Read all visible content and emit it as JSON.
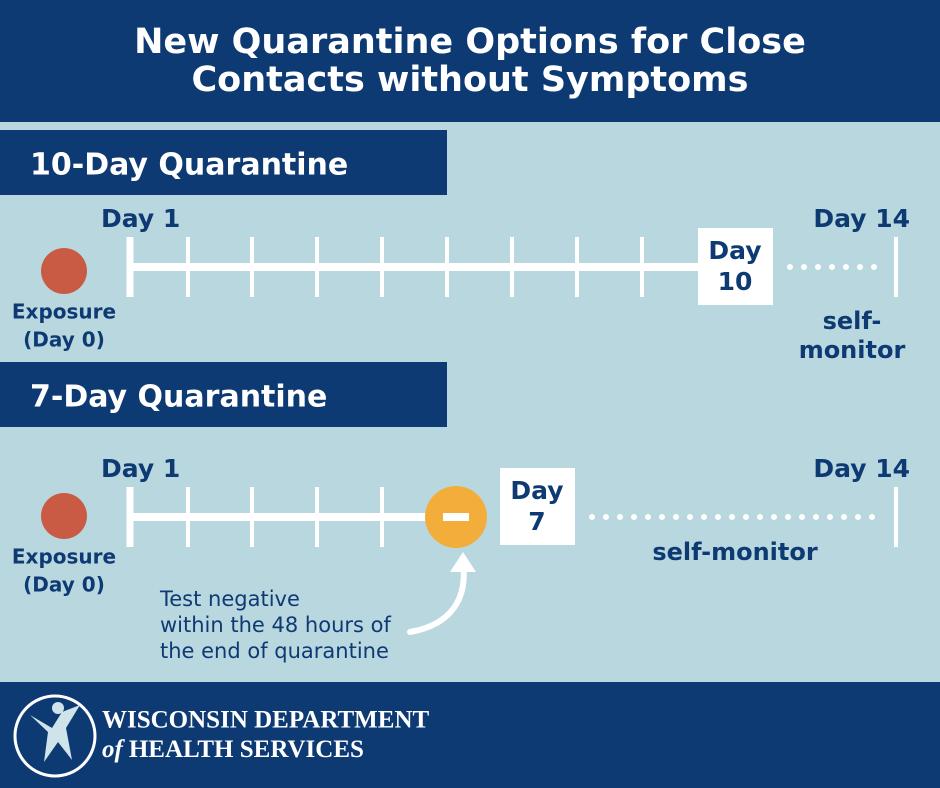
{
  "header": {
    "title_lines": [
      "New Quarantine Options for Close",
      "Contacts without Symptoms"
    ]
  },
  "sections": [
    {
      "heading": "10-Day Quarantine",
      "start_label": "Day 1",
      "end_label": "Day 14",
      "exposure_lines": [
        "Exposure",
        "(Day 0)"
      ],
      "box_lines": [
        "Day",
        "10"
      ],
      "monitor_lines": [
        "self-",
        "monitor"
      ]
    },
    {
      "heading": "7-Day Quarantine",
      "start_label": "Day 1",
      "end_label": "Day 14",
      "exposure_lines": [
        "Exposure",
        "(Day 0)"
      ],
      "box_lines": [
        "Day",
        "7"
      ],
      "monitor_lines": [
        "self-monitor"
      ],
      "note_lines": [
        "Test negative",
        "within the 48 hours of",
        "the end of quarantine"
      ]
    }
  ],
  "footer": {
    "line1": "WISCONSIN DEPARTMENT",
    "line2_prefix": "of",
    "line2": "HEALTH SERVICES"
  }
}
